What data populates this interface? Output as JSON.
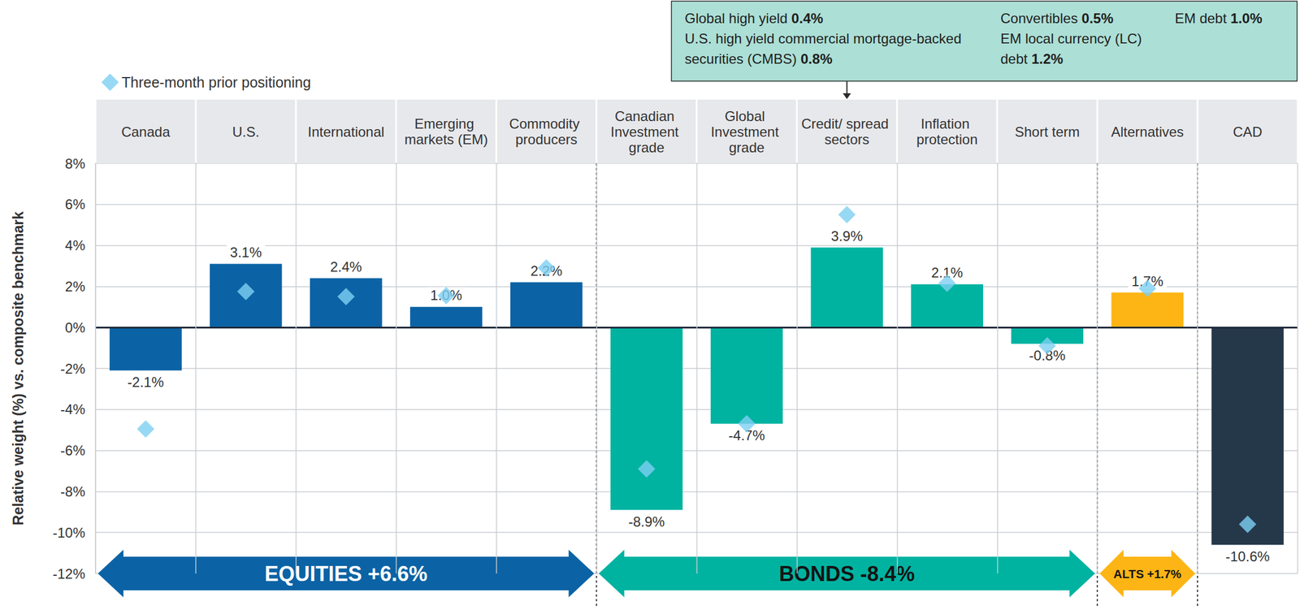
{
  "chart_data": {
    "type": "bar",
    "categories": [
      "Canada",
      "U.S.",
      "International",
      "Emerging markets (EM)",
      "Commodity producers",
      "Canadian Investment grade",
      "Global Investment grade",
      "Credit/ spread sectors",
      "Inflation protection",
      "Short term",
      "Alternatives",
      "CAD"
    ],
    "values": [
      -2.1,
      3.1,
      2.4,
      1.0,
      2.2,
      -8.9,
      -4.7,
      3.9,
      2.1,
      -0.8,
      1.7,
      -10.6
    ],
    "value_labels": [
      "-2.1%",
      "3.1%",
      "2.4%",
      "1.0%",
      "2.2%",
      "-8.9%",
      "-4.7%",
      "3.9%",
      "2.1%",
      "-0.8%",
      "1.7%",
      "-10.6%"
    ],
    "colors": [
      "#0b63a5",
      "#0b63a5",
      "#0b63a5",
      "#0b63a5",
      "#0b63a5",
      "#00b3a1",
      "#00b3a1",
      "#00b3a1",
      "#00b3a1",
      "#00b3a1",
      "#fdb515",
      "#25384a"
    ],
    "data_labels": true,
    "y_label": "Relative weight (%) vs. composite benchmark",
    "ylim": [
      -12,
      8
    ],
    "yticks": [
      {
        "value": -12,
        "label": "-12%"
      },
      {
        "value": -10,
        "label": "-10%"
      },
      {
        "value": -8,
        "label": "-8%"
      },
      {
        "value": -6,
        "label": "-6%"
      },
      {
        "value": -4,
        "label": "-4%"
      },
      {
        "value": -2,
        "label": "-2%"
      },
      {
        "value": 0,
        "label": "0%"
      },
      {
        "value": 2,
        "label": "2%"
      },
      {
        "value": 4,
        "label": "4%"
      },
      {
        "value": 6,
        "label": "6%"
      },
      {
        "value": 8,
        "label": "8%"
      }
    ],
    "grid": true,
    "legend": "upper left",
    "series": [
      {
        "name": "Three-month prior positioning",
        "type": "scatter",
        "marker": "diamond",
        "color": "#7dd0f3",
        "values": [
          -4.95,
          1.75,
          1.5,
          1.55,
          2.9,
          -6.9,
          -4.7,
          5.5,
          2.15,
          -0.9,
          1.9,
          -9.6
        ]
      }
    ],
    "groups": [
      {
        "name": "EQUITIES",
        "value": 6.6,
        "value_label": "+6.6%",
        "from": "Canada",
        "to": "Commodity producers",
        "color": "#0b63a5"
      },
      {
        "name": "BONDS",
        "value": -8.4,
        "value_label": "-8.4%",
        "from": "Canadian Investment grade",
        "to": "Short term",
        "color": "#00b3a1"
      },
      {
        "name": "ALTS",
        "value": 1.7,
        "value_label": "+1.7%",
        "from": "Alternatives",
        "to": "Alternatives",
        "color": "#fdb515"
      }
    ],
    "callout": {
      "category": "Credit/ spread sectors",
      "items": [
        {
          "text": "Global high yield",
          "value": 0.4,
          "value_label": "0.4%"
        },
        {
          "text": "U.S. high yield commercial mortgage-backed securities (CMBS)",
          "value": 0.8,
          "value_label": "0.8%"
        },
        {
          "text": "Convertibles",
          "value": 0.5,
          "value_label": "0.5%"
        },
        {
          "text": "EM local currency (LC) debt",
          "value": 1.2,
          "value_label": "1.2%"
        },
        {
          "text": "EM debt",
          "value": 1.0,
          "value_label": "1.0%"
        }
      ]
    }
  }
}
